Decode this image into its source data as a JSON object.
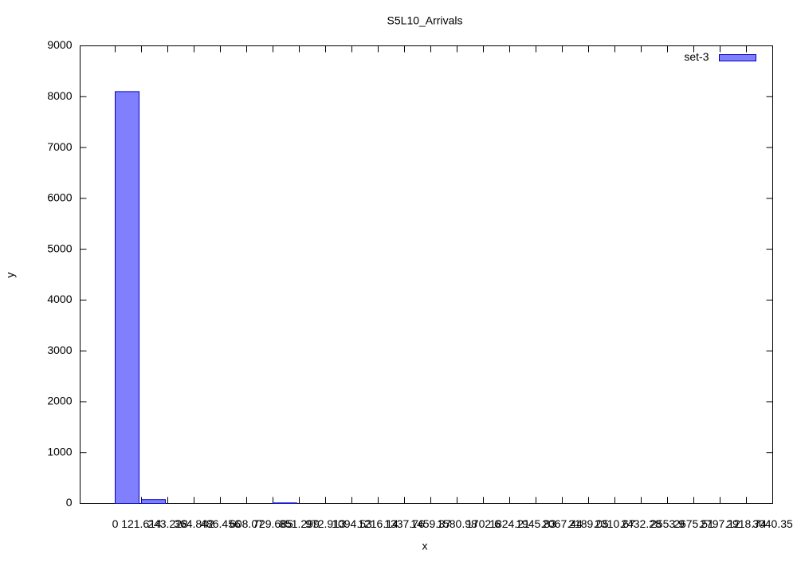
{
  "chart_data": {
    "type": "histogram",
    "title": "S5L10_Arrivals",
    "x_label": "x",
    "y_label": "y",
    "bins": [
      0,
      121.614,
      243.228,
      364.842,
      486.456,
      608.07,
      729.685,
      851.299,
      972.913,
      1094.53,
      1216.14,
      1337.76,
      1459.37,
      1580.98,
      1702.6,
      1824.21,
      1945.83,
      2067.44,
      2189.05,
      2310.67,
      2432.28,
      2553.9,
      2675.51,
      2797.12,
      2918.74,
      3040.35
    ],
    "series": [
      {
        "name": "set-3",
        "color": "#8080ff",
        "values": [
          8100,
          75,
          0,
          0,
          0,
          0,
          10,
          0,
          0,
          0,
          0,
          0,
          0,
          0,
          0,
          0,
          0,
          0,
          0,
          0,
          0,
          0,
          0,
          0,
          0
        ]
      }
    ],
    "xlim": [
      -162.152,
      3040.35
    ],
    "ylim": [
      0,
      9000
    ],
    "yticks": [
      0,
      1000,
      2000,
      3000,
      4000,
      5000,
      6000,
      7000,
      8000,
      9000
    ],
    "legend": "top-right"
  }
}
